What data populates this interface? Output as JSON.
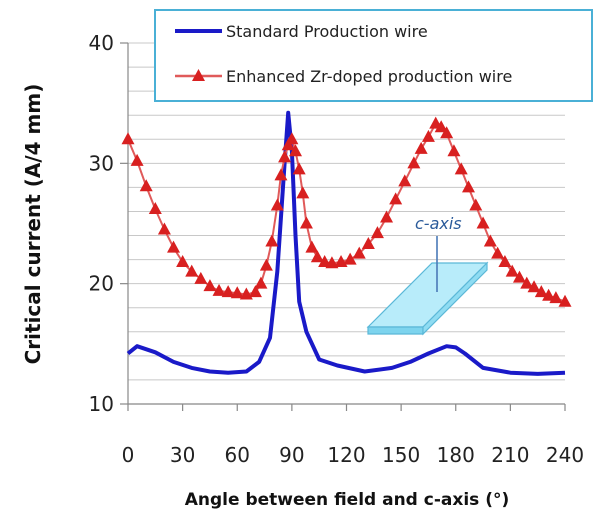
{
  "chart_data": {
    "type": "line",
    "xlabel": "Angle between field and c-axis (°)",
    "ylabel": "Critical current (A/4 mm)",
    "xlim": [
      0,
      240
    ],
    "ylim": [
      10,
      40
    ],
    "x_ticks": [
      "0",
      "30",
      "60",
      "90",
      "120",
      "150",
      "180",
      "210",
      "240"
    ],
    "y_ticks": [
      "10",
      "20",
      "30",
      "40"
    ],
    "grid": "horizontal",
    "legend_position": "top-right",
    "annotation": "c-axis",
    "series": [
      {
        "name": "Standard Production wire",
        "color": "#1a1ac8",
        "marker": "none",
        "x": [
          0,
          5,
          15,
          25,
          35,
          45,
          55,
          65,
          72,
          78,
          82,
          86,
          88,
          90,
          92,
          94,
          98,
          105,
          115,
          130,
          145,
          155,
          165,
          175,
          180,
          185,
          195,
          210,
          225,
          240
        ],
        "y": [
          14.2,
          14.8,
          14.3,
          13.5,
          13.0,
          12.7,
          12.6,
          12.7,
          13.5,
          15.5,
          21.0,
          30.0,
          34.2,
          31.0,
          24.0,
          18.5,
          16.0,
          13.7,
          13.2,
          12.7,
          13.0,
          13.5,
          14.2,
          14.8,
          14.7,
          14.2,
          13.0,
          12.6,
          12.5,
          12.6
        ]
      },
      {
        "name": "Enhanced Zr-doped production wire",
        "color": "#d82020",
        "marker": "triangle",
        "x": [
          0,
          5,
          10,
          15,
          20,
          25,
          30,
          35,
          40,
          45,
          50,
          55,
          60,
          65,
          70,
          73,
          76,
          79,
          82,
          84,
          86,
          88,
          90,
          92,
          94,
          96,
          98,
          101,
          104,
          108,
          112,
          117,
          122,
          127,
          132,
          137,
          142,
          147,
          152,
          157,
          161,
          165,
          169,
          172,
          175,
          179,
          183,
          187,
          191,
          195,
          199,
          203,
          207,
          211,
          215,
          219,
          223,
          227,
          231,
          235,
          240
        ],
        "y": [
          32.0,
          30.2,
          28.1,
          26.2,
          24.5,
          23.0,
          21.8,
          21.0,
          20.4,
          19.8,
          19.4,
          19.3,
          19.2,
          19.1,
          19.3,
          20.0,
          21.5,
          23.5,
          26.5,
          29.0,
          30.5,
          31.5,
          32.0,
          31.0,
          29.5,
          27.5,
          25.0,
          23.0,
          22.2,
          21.8,
          21.7,
          21.8,
          22.0,
          22.5,
          23.3,
          24.2,
          25.5,
          27.0,
          28.5,
          30.0,
          31.2,
          32.2,
          33.3,
          33.0,
          32.5,
          31.0,
          29.5,
          28.0,
          26.5,
          25.0,
          23.5,
          22.5,
          21.8,
          21.0,
          20.5,
          20.0,
          19.7,
          19.3,
          19.0,
          18.8,
          18.5
        ]
      }
    ]
  }
}
